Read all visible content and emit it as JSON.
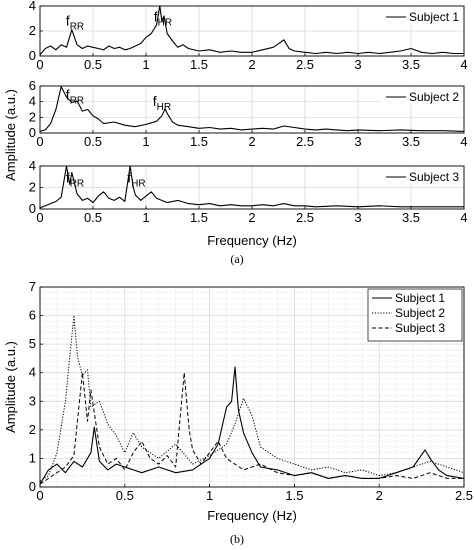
{
  "chart_data": [
    {
      "id": "a1",
      "type": "line",
      "xlim": [
        0,
        4
      ],
      "ylim": [
        0,
        4
      ],
      "xticks": [
        0,
        0.5,
        1,
        1.5,
        2,
        2.5,
        3,
        3.5,
        4
      ],
      "xtick_labels": [
        "0",
        "0.5",
        "1",
        "1.5",
        "2",
        "2.5",
        "3",
        "3.5",
        "4"
      ],
      "yticks": [
        0,
        2,
        4
      ],
      "ytick_labels": [
        "0",
        "2",
        "4"
      ],
      "grid": true,
      "legend_position": "top-right",
      "series": [
        {
          "name": "Subject 1",
          "style": "solid",
          "x": [
            0,
            0.05,
            0.1,
            0.15,
            0.2,
            0.25,
            0.3,
            0.35,
            0.4,
            0.45,
            0.5,
            0.55,
            0.6,
            0.65,
            0.7,
            0.75,
            0.8,
            0.85,
            0.9,
            0.95,
            1.0,
            1.05,
            1.1,
            1.13,
            1.15,
            1.17,
            1.2,
            1.25,
            1.3,
            1.35,
            1.4,
            1.5,
            1.6,
            1.7,
            1.8,
            1.9,
            2.0,
            2.1,
            2.2,
            2.27,
            2.3,
            2.35,
            2.4,
            2.5,
            2.6,
            2.7,
            2.8,
            2.9,
            3.0,
            3.1,
            3.2,
            3.3,
            3.4,
            3.5,
            3.6,
            3.7,
            3.8,
            3.9,
            4.0
          ],
          "y": [
            0.1,
            0.6,
            0.8,
            0.5,
            0.9,
            0.7,
            2.1,
            0.9,
            0.6,
            0.8,
            0.7,
            0.6,
            0.5,
            0.8,
            0.6,
            0.7,
            0.5,
            0.6,
            0.8,
            1.0,
            1.5,
            1.8,
            2.5,
            4.2,
            2.8,
            3.2,
            1.8,
            1.2,
            0.7,
            0.9,
            0.6,
            0.4,
            0.5,
            0.3,
            0.4,
            0.3,
            0.3,
            0.5,
            0.7,
            1.1,
            1.3,
            0.6,
            0.4,
            0.3,
            0.2,
            0.3,
            0.2,
            0.3,
            0.2,
            0.3,
            0.2,
            0.3,
            0.4,
            0.6,
            0.3,
            0.2,
            0.3,
            0.2,
            0.2
          ]
        }
      ],
      "annotations": [
        {
          "base": "f",
          "sub": "RR",
          "x": 0.3,
          "y": 2.3
        },
        {
          "base": "f",
          "sub": "HR",
          "x": 1.13,
          "y": 2.6
        }
      ]
    },
    {
      "id": "a2",
      "type": "line",
      "xlim": [
        0,
        4
      ],
      "ylim": [
        0,
        6
      ],
      "xticks": [
        0,
        0.5,
        1,
        1.5,
        2,
        2.5,
        3,
        3.5,
        4
      ],
      "xtick_labels": [
        "0",
        "0.5",
        "1",
        "1.5",
        "2",
        "2.5",
        "3",
        "3.5",
        "4"
      ],
      "yticks": [
        0,
        2,
        4,
        6
      ],
      "ytick_labels": [
        "0",
        "2",
        "4",
        "6"
      ],
      "grid": true,
      "legend_position": "top-right",
      "series": [
        {
          "name": "Subject 2",
          "style": "solid",
          "x": [
            0,
            0.05,
            0.1,
            0.15,
            0.2,
            0.25,
            0.3,
            0.35,
            0.4,
            0.45,
            0.5,
            0.55,
            0.6,
            0.7,
            0.8,
            0.9,
            1.0,
            1.05,
            1.1,
            1.15,
            1.18,
            1.2,
            1.25,
            1.3,
            1.4,
            1.5,
            1.6,
            1.7,
            1.8,
            1.9,
            2.0,
            2.1,
            2.2,
            2.3,
            2.4,
            2.5,
            2.6,
            2.7,
            2.8,
            2.9,
            3.0,
            3.2,
            3.4,
            3.6,
            3.8,
            4.0
          ],
          "y": [
            0.2,
            0.4,
            1.2,
            3.0,
            5.9,
            4.6,
            3.9,
            4.1,
            2.8,
            3.0,
            2.2,
            1.8,
            1.2,
            1.4,
            1.0,
            0.8,
            1.1,
            1.3,
            1.5,
            2.2,
            3.1,
            2.5,
            1.4,
            1.0,
            0.8,
            0.6,
            0.7,
            0.5,
            0.6,
            0.4,
            0.5,
            0.6,
            0.5,
            0.9,
            0.7,
            0.5,
            0.4,
            0.5,
            0.4,
            0.3,
            0.4,
            0.3,
            0.4,
            0.3,
            0.3,
            0.2
          ]
        }
      ],
      "annotations": [
        {
          "base": "f",
          "sub": "RR",
          "x": 0.3,
          "y": 4.0
        },
        {
          "base": "f",
          "sub": "HR",
          "x": 1.12,
          "y": 3.2
        }
      ]
    },
    {
      "id": "a3",
      "type": "line",
      "xlim": [
        0,
        4
      ],
      "ylim": [
        0,
        4
      ],
      "xticks": [
        0,
        0.5,
        1,
        1.5,
        2,
        2.5,
        3,
        3.5,
        4
      ],
      "xtick_labels": [
        "0",
        "0.5",
        "1",
        "1.5",
        "2",
        "2.5",
        "3",
        "3.5",
        "4"
      ],
      "yticks": [
        0,
        2,
        4
      ],
      "ytick_labels": [
        "0",
        "2",
        "4"
      ],
      "grid": true,
      "legend_position": "top-right",
      "series": [
        {
          "name": "Subject 3",
          "style": "solid",
          "x": [
            0,
            0.05,
            0.1,
            0.15,
            0.2,
            0.25,
            0.28,
            0.3,
            0.35,
            0.4,
            0.45,
            0.5,
            0.55,
            0.6,
            0.65,
            0.7,
            0.75,
            0.8,
            0.85,
            0.88,
            0.9,
            0.95,
            1.0,
            1.05,
            1.1,
            1.2,
            1.3,
            1.4,
            1.5,
            1.6,
            1.7,
            1.8,
            1.9,
            2.0,
            2.1,
            2.2,
            2.3,
            2.4,
            2.5,
            2.6,
            2.8,
            3.0,
            3.2,
            3.4,
            3.6,
            3.8,
            4.0
          ],
          "y": [
            0.1,
            0.3,
            0.5,
            0.7,
            1.1,
            4.0,
            2.3,
            3.4,
            1.4,
            0.8,
            1.0,
            0.6,
            1.2,
            1.6,
            1.0,
            0.8,
            1.1,
            0.7,
            4.0,
            2.0,
            1.3,
            0.8,
            1.2,
            1.6,
            1.0,
            0.6,
            0.8,
            0.5,
            0.4,
            0.5,
            0.3,
            0.4,
            0.3,
            0.3,
            0.4,
            0.3,
            0.5,
            0.3,
            0.3,
            0.2,
            0.3,
            0.2,
            0.3,
            0.2,
            0.2,
            0.2,
            0.2
          ]
        }
      ],
      "annotations": [
        {
          "base": "f",
          "sub": "RR",
          "x": 0.3,
          "y": 2.3
        },
        {
          "base": "f",
          "sub": "HR",
          "x": 0.88,
          "y": 2.3
        }
      ]
    },
    {
      "id": "b",
      "type": "line",
      "xlim": [
        0,
        2.5
      ],
      "ylim": [
        0,
        7
      ],
      "xticks": [
        0,
        0.5,
        1,
        1.5,
        2,
        2.5
      ],
      "xtick_labels": [
        "0",
        "0.5",
        "1",
        "1.5",
        "2",
        "2.5"
      ],
      "yticks": [
        0,
        1,
        2,
        3,
        4,
        5,
        6,
        7
      ],
      "ytick_labels": [
        "0",
        "1",
        "2",
        "3",
        "4",
        "5",
        "6",
        "7"
      ],
      "grid": true,
      "legend_position": "top-right",
      "series": [
        {
          "name": "Subject 1",
          "style": "solid",
          "x": [
            0,
            0.05,
            0.1,
            0.15,
            0.2,
            0.25,
            0.3,
            0.32,
            0.35,
            0.4,
            0.45,
            0.5,
            0.55,
            0.6,
            0.7,
            0.8,
            0.9,
            0.95,
            1.0,
            1.05,
            1.1,
            1.13,
            1.15,
            1.17,
            1.2,
            1.25,
            1.3,
            1.4,
            1.5,
            1.6,
            1.7,
            1.8,
            1.9,
            2.0,
            2.1,
            2.2,
            2.27,
            2.3,
            2.35,
            2.4,
            2.5
          ],
          "y": [
            0.1,
            0.6,
            0.8,
            0.5,
            0.9,
            0.7,
            1.2,
            2.1,
            0.9,
            0.6,
            0.8,
            0.7,
            0.6,
            0.5,
            0.7,
            0.5,
            0.6,
            0.8,
            1.0,
            1.5,
            2.8,
            3.0,
            4.2,
            2.7,
            1.9,
            1.2,
            0.7,
            0.6,
            0.4,
            0.5,
            0.3,
            0.4,
            0.3,
            0.3,
            0.5,
            0.7,
            1.3,
            1.0,
            0.6,
            0.4,
            0.3
          ]
        },
        {
          "name": "Subject 2",
          "style": "dotted",
          "x": [
            0,
            0.05,
            0.1,
            0.15,
            0.2,
            0.22,
            0.25,
            0.28,
            0.3,
            0.35,
            0.4,
            0.45,
            0.5,
            0.55,
            0.6,
            0.7,
            0.8,
            0.9,
            1.0,
            1.05,
            1.1,
            1.15,
            1.2,
            1.25,
            1.3,
            1.4,
            1.5,
            1.6,
            1.7,
            1.8,
            1.9,
            2.0,
            2.1,
            2.2,
            2.3,
            2.4,
            2.5
          ],
          "y": [
            0.2,
            0.4,
            1.2,
            3.0,
            6.0,
            4.6,
            3.9,
            4.1,
            2.8,
            3.0,
            2.2,
            1.8,
            1.2,
            1.9,
            1.4,
            1.0,
            1.5,
            0.8,
            1.1,
            1.3,
            1.5,
            2.2,
            3.1,
            2.5,
            1.4,
            1.0,
            0.8,
            0.6,
            0.7,
            0.5,
            0.6,
            0.4,
            0.5,
            0.7,
            0.9,
            0.7,
            0.5
          ]
        },
        {
          "name": "Subject 3",
          "style": "dashed",
          "x": [
            0,
            0.05,
            0.1,
            0.15,
            0.2,
            0.25,
            0.28,
            0.3,
            0.35,
            0.4,
            0.45,
            0.5,
            0.55,
            0.6,
            0.65,
            0.7,
            0.75,
            0.8,
            0.85,
            0.88,
            0.9,
            0.95,
            1.0,
            1.05,
            1.1,
            1.2,
            1.3,
            1.4,
            1.5,
            1.6,
            1.7,
            1.8,
            1.9,
            2.0,
            2.1,
            2.2,
            2.3,
            2.4,
            2.5
          ],
          "y": [
            0.1,
            0.3,
            0.5,
            0.7,
            1.1,
            4.0,
            2.3,
            3.4,
            1.4,
            0.8,
            1.0,
            0.6,
            1.2,
            1.6,
            1.0,
            0.8,
            1.1,
            0.7,
            4.0,
            2.0,
            1.3,
            0.8,
            1.2,
            1.6,
            1.0,
            0.6,
            0.8,
            0.5,
            0.4,
            0.5,
            0.3,
            0.4,
            0.3,
            0.3,
            0.4,
            0.3,
            0.5,
            0.3,
            0.3
          ]
        }
      ]
    }
  ],
  "labels": {
    "ylabel_top": "Amplitude (a.u.)",
    "xlabel_top": "Frequency (Hz)",
    "caption_a": "(a)",
    "ylabel_bottom": "Amplitude (a.u.)",
    "xlabel_bottom": "Frequency (Hz)",
    "caption_b": "(b)"
  }
}
